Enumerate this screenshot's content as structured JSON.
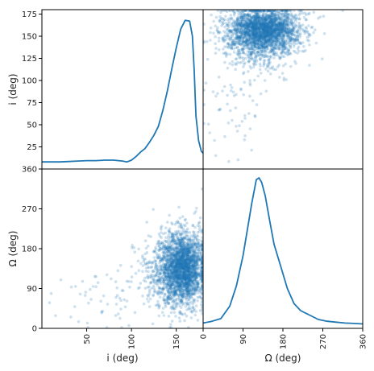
{
  "chart_data": {
    "type": "scatter",
    "layout": "pairplot 2x2 (diagonal: kde, off-diagonal: scatter)",
    "color": "#1f77b4",
    "variables": [
      {
        "key": "i",
        "label": "i (deg)",
        "x_range": [
          0,
          180
        ],
        "y_range": [
          0,
          180
        ],
        "x_ticks": [
          50,
          100,
          150
        ],
        "y_ticks": [
          25,
          50,
          75,
          100,
          125,
          150,
          175
        ]
      },
      {
        "key": "Omega",
        "label": "Ω (deg)",
        "range": [
          0,
          360
        ],
        "ticks": [
          0,
          90,
          180,
          270,
          360
        ]
      }
    ],
    "y_tick_labels_left": {
      "top": [
        "25",
        "50",
        "75",
        "100",
        "125",
        "150",
        "175"
      ],
      "bottom": [
        "0",
        "90",
        "180",
        "270",
        "360"
      ]
    },
    "x_tick_labels_bottom": {
      "left": [
        "50",
        "100",
        "150"
      ],
      "right": [
        "0",
        "90",
        "180",
        "270",
        "360"
      ]
    },
    "kde_i": {
      "x": [
        0,
        10,
        20,
        30,
        40,
        50,
        60,
        70,
        80,
        90,
        95,
        100,
        105,
        110,
        115,
        120,
        125,
        130,
        135,
        140,
        145,
        150,
        155,
        160,
        165,
        168,
        170,
        172,
        175,
        178,
        180
      ],
      "y": [
        8,
        8,
        8,
        8.5,
        9,
        9.5,
        9.5,
        10,
        10,
        9,
        8,
        10,
        14,
        19,
        23,
        30,
        38,
        48,
        66,
        88,
        113,
        137,
        158,
        168,
        167,
        150,
        112,
        60,
        32,
        20,
        18
      ]
    },
    "kde_Omega": {
      "x": [
        0,
        20,
        40,
        60,
        75,
        90,
        100,
        110,
        120,
        126,
        132,
        140,
        150,
        160,
        175,
        190,
        205,
        220,
        240,
        260,
        280,
        300,
        320,
        340,
        360
      ],
      "y": [
        0.06,
        0.08,
        0.11,
        0.25,
        0.48,
        0.82,
        1.12,
        1.42,
        1.68,
        1.7,
        1.65,
        1.5,
        1.22,
        0.95,
        0.7,
        0.45,
        0.28,
        0.2,
        0.15,
        0.1,
        0.08,
        0.07,
        0.06,
        0.055,
        0.05
      ],
      "y_range": [
        0,
        1.8
      ]
    },
    "scatter_clusters": [
      {
        "i_mean": 158,
        "i_sd": 12,
        "Omega_mean": 135,
        "Omega_sd": 42,
        "count": 2600
      },
      {
        "i_mean": 65,
        "i_sd": 25,
        "Omega_mean": 70,
        "Omega_sd": 35,
        "count": 60
      }
    ]
  }
}
